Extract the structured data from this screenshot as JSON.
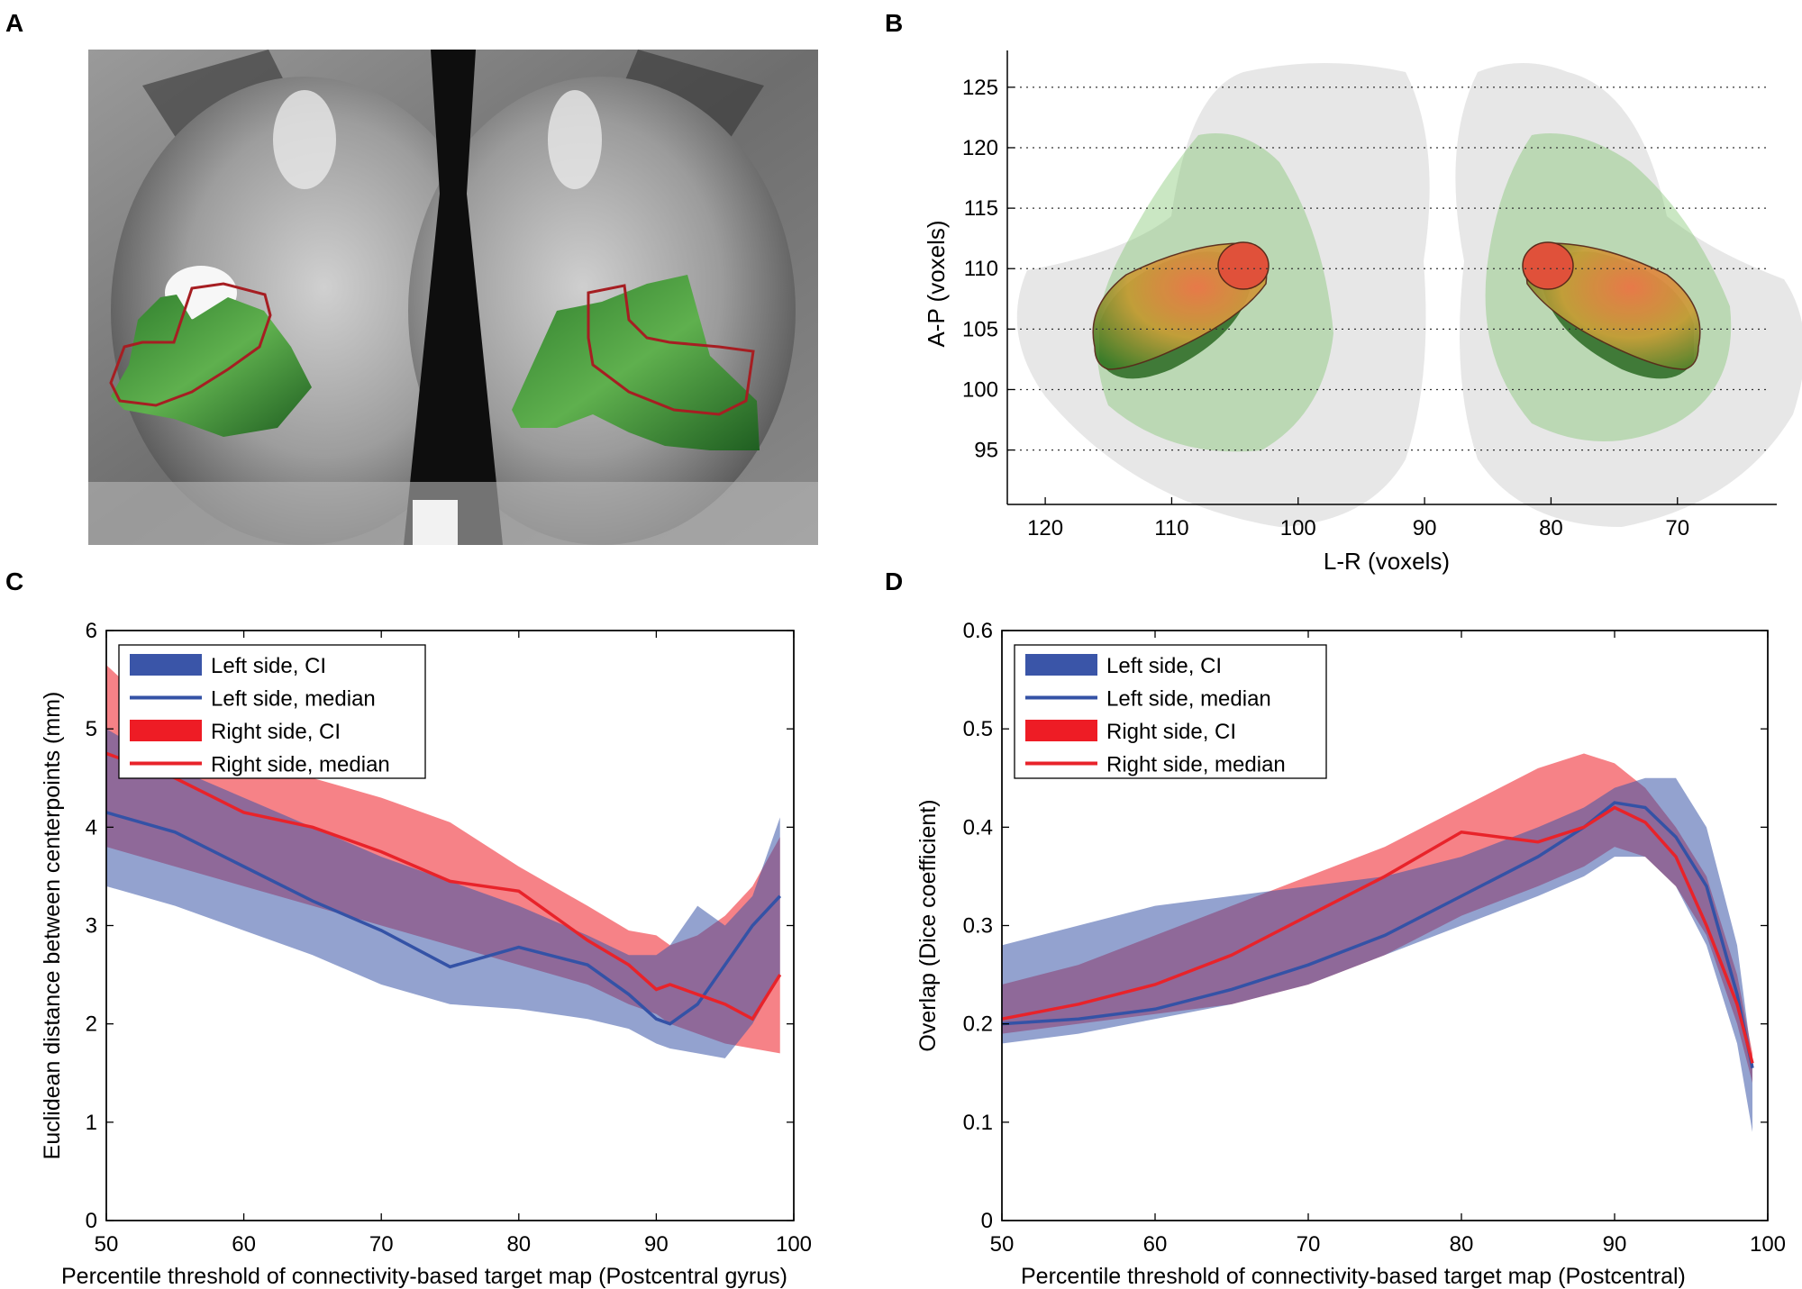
{
  "panels": {
    "a": "A",
    "b": "B",
    "c": "C",
    "d": "D"
  },
  "colors": {
    "left_ci": "#3a55a8",
    "left_median": "#3452a6",
    "right_ci": "#ee1c25",
    "right_median": "#e8232a",
    "tract_green": "#3fae3a",
    "outline_red": "#a61e22"
  },
  "chart_data": [
    {
      "type": "image",
      "panel": "A",
      "description_icons": [
        "brain-slice-image",
        "green-target-region",
        "red-outline-region"
      ]
    },
    {
      "type": "scatter",
      "panel": "B",
      "xlabel": "L-R (voxels)",
      "ylabel": "A-P (voxels)",
      "xlim": [
        123,
        63
      ],
      "ylim": [
        90.5,
        127
      ],
      "xticks": [
        120,
        110,
        100,
        90,
        80,
        70
      ],
      "yticks": [
        95,
        100,
        105,
        110,
        115,
        120,
        125
      ],
      "grid": "dotted horizontal"
    },
    {
      "type": "area",
      "panel": "C",
      "xlabel": "Percentile threshold of connectivity-based target map (Postcentral gyrus)",
      "ylabel": "Euclidean distance between centerpoints (mm)",
      "xlim": [
        50,
        100
      ],
      "ylim": [
        0,
        6
      ],
      "xticks": [
        50,
        60,
        70,
        80,
        90,
        100
      ],
      "yticks": [
        0,
        1,
        2,
        3,
        4,
        5,
        6
      ],
      "legend": [
        "Left side, CI",
        "Left side, median",
        "Right side, CI",
        "Right side, median"
      ],
      "legend_position": "top-left",
      "x": [
        50,
        55,
        60,
        65,
        70,
        75,
        80,
        85,
        88,
        90,
        91,
        93,
        95,
        97,
        99
      ],
      "series": [
        {
          "name": "Left side, CI (upper)",
          "values": [
            5.0,
            4.6,
            4.3,
            4.0,
            3.7,
            3.45,
            3.2,
            2.9,
            2.7,
            2.7,
            2.8,
            3.2,
            3.0,
            3.3,
            4.1
          ]
        },
        {
          "name": "Left side, CI (lower)",
          "values": [
            3.4,
            3.2,
            2.95,
            2.7,
            2.4,
            2.2,
            2.15,
            2.05,
            1.95,
            1.8,
            1.75,
            1.7,
            1.65,
            2.0,
            2.5
          ]
        },
        {
          "name": "Left side, median",
          "values": [
            4.15,
            3.95,
            3.6,
            3.25,
            2.95,
            2.58,
            2.78,
            2.6,
            2.3,
            2.05,
            2.0,
            2.2,
            2.6,
            3.0,
            3.3
          ]
        },
        {
          "name": "Right side, CI (upper)",
          "values": [
            5.65,
            5.0,
            4.7,
            4.5,
            4.3,
            4.05,
            3.6,
            3.2,
            2.95,
            2.9,
            2.8,
            2.9,
            3.1,
            3.4,
            3.9
          ]
        },
        {
          "name": "Right side, CI (lower)",
          "values": [
            3.8,
            3.6,
            3.4,
            3.2,
            3.0,
            2.8,
            2.6,
            2.4,
            2.2,
            2.1,
            2.0,
            1.9,
            1.8,
            1.75,
            1.7
          ]
        },
        {
          "name": "Right side, median",
          "values": [
            4.75,
            4.5,
            4.15,
            4.0,
            3.75,
            3.45,
            3.35,
            2.85,
            2.6,
            2.35,
            2.4,
            2.3,
            2.2,
            2.05,
            2.5
          ]
        }
      ]
    },
    {
      "type": "area",
      "panel": "D",
      "xlabel": "Percentile threshold of connectivity-based target map (Postcentral)",
      "ylabel": "Overlap (Dice coefficient)",
      "xlim": [
        50,
        100
      ],
      "ylim": [
        0,
        0.6
      ],
      "xticks": [
        50,
        60,
        70,
        80,
        90,
        100
      ],
      "yticks": [
        0,
        0.1,
        0.2,
        0.3,
        0.4,
        0.5,
        0.6
      ],
      "legend": [
        "Left side, CI",
        "Left side, median",
        "Right side, CI",
        "Right side, median"
      ],
      "legend_position": "top-left",
      "x": [
        50,
        55,
        60,
        65,
        70,
        75,
        80,
        85,
        88,
        90,
        92,
        94,
        96,
        98,
        99
      ],
      "series": [
        {
          "name": "Left side, CI (upper)",
          "values": [
            0.28,
            0.3,
            0.32,
            0.33,
            0.34,
            0.35,
            0.37,
            0.4,
            0.42,
            0.44,
            0.45,
            0.45,
            0.4,
            0.28,
            0.16
          ],
          "note": "approximate"
        },
        {
          "name": "Left side, CI (lower)",
          "values": [
            0.18,
            0.19,
            0.205,
            0.22,
            0.24,
            0.27,
            0.3,
            0.33,
            0.35,
            0.37,
            0.37,
            0.34,
            0.28,
            0.18,
            0.09
          ]
        },
        {
          "name": "Left side, median",
          "values": [
            0.2,
            0.205,
            0.215,
            0.235,
            0.26,
            0.29,
            0.33,
            0.37,
            0.4,
            0.425,
            0.42,
            0.39,
            0.34,
            0.23,
            0.155
          ]
        },
        {
          "name": "Right side, CI (upper)",
          "values": [
            0.24,
            0.26,
            0.29,
            0.32,
            0.35,
            0.38,
            0.42,
            0.46,
            0.475,
            0.465,
            0.44,
            0.4,
            0.35,
            0.25,
            0.17
          ]
        },
        {
          "name": "Right side, CI (lower)",
          "values": [
            0.19,
            0.2,
            0.21,
            0.22,
            0.24,
            0.27,
            0.31,
            0.34,
            0.36,
            0.38,
            0.37,
            0.34,
            0.29,
            0.2,
            0.14
          ]
        },
        {
          "name": "Right side, median",
          "values": [
            0.205,
            0.22,
            0.24,
            0.27,
            0.31,
            0.35,
            0.395,
            0.385,
            0.4,
            0.42,
            0.405,
            0.37,
            0.3,
            0.22,
            0.16
          ]
        }
      ]
    }
  ]
}
